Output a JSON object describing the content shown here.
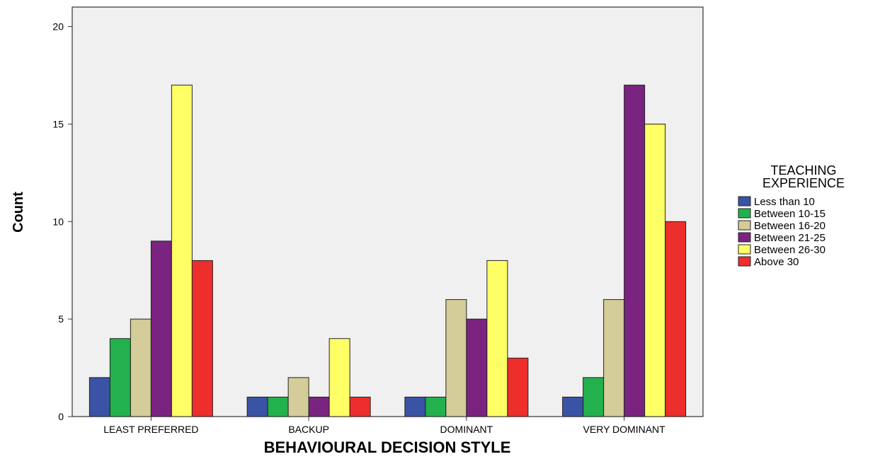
{
  "chart_data": {
    "type": "bar",
    "title": "",
    "xlabel": "BEHAVIOURAL DECISION STYLE",
    "ylabel": "Count",
    "ylim": [
      0,
      21
    ],
    "yticks": [
      0,
      5,
      10,
      15,
      20
    ],
    "grid": false,
    "legend_position": "right",
    "legend_title": [
      "TEACHING",
      "EXPERIENCE"
    ],
    "categories": [
      "LEAST PREFERRED",
      "BACKUP",
      "DOMINANT",
      "VERY DOMINANT"
    ],
    "series": [
      {
        "name": "Less than 10",
        "color": "#3a53a4",
        "values": [
          2,
          1,
          1,
          1
        ]
      },
      {
        "name": "Between 10-15",
        "color": "#22b14c",
        "values": [
          4,
          1,
          1,
          2
        ]
      },
      {
        "name": "Between 16-20",
        "color": "#d4cc99",
        "values": [
          5,
          2,
          6,
          6
        ]
      },
      {
        "name": "Between 21-25",
        "color": "#7b2380",
        "values": [
          9,
          1,
          5,
          17
        ]
      },
      {
        "name": "Between 26-30",
        "color": "#ffff66",
        "values": [
          17,
          4,
          8,
          15
        ]
      },
      {
        "name": "Above 30",
        "color": "#ee2d2d",
        "values": [
          8,
          1,
          3,
          10
        ]
      }
    ],
    "plot_background": "#f0f0f0"
  }
}
